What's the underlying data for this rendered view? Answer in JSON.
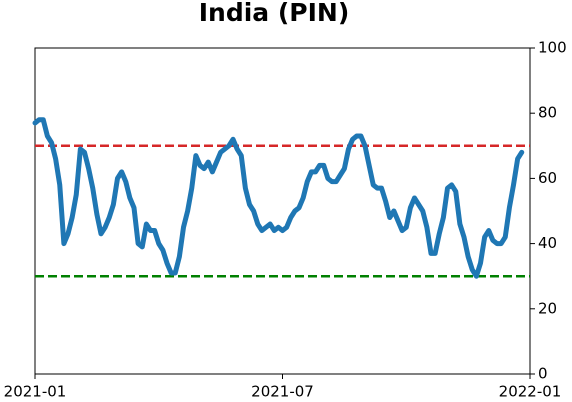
{
  "chart_data": {
    "type": "line",
    "title": "India (PIN)",
    "x": [
      0,
      0.1,
      0.2,
      0.3,
      0.4,
      0.5,
      0.6,
      0.7,
      0.8,
      0.9,
      1,
      1.1,
      1.2,
      1.3,
      1.4,
      1.5,
      1.6,
      1.7,
      1.8,
      1.9,
      2,
      2.1,
      2.2,
      2.3,
      2.4,
      2.5,
      2.6,
      2.7,
      2.8,
      2.9,
      3,
      3.1,
      3.2,
      3.3,
      3.4,
      3.5,
      3.6,
      3.7,
      3.8,
      3.9,
      4,
      4.1,
      4.2,
      4.3,
      4.4,
      4.5,
      4.6,
      4.7,
      4.8,
      4.9,
      5,
      5.1,
      5.2,
      5.3,
      5.4,
      5.5,
      5.6,
      5.7,
      5.8,
      5.9,
      6,
      6.1,
      6.2,
      6.3,
      6.4,
      6.5,
      6.6,
      6.7,
      6.8,
      6.9,
      7,
      7.1,
      7.2,
      7.3,
      7.4,
      7.5,
      7.6,
      7.7,
      7.8,
      7.9,
      8,
      8.1,
      8.2,
      8.3,
      8.4,
      8.5,
      8.6,
      8.7,
      8.8,
      8.9,
      9,
      9.1,
      9.2,
      9.3,
      9.4,
      9.5,
      9.6,
      9.7,
      9.8,
      9.9,
      10,
      10.1,
      10.2,
      10.3,
      10.4,
      10.5,
      10.6,
      10.7,
      10.8,
      10.9,
      11,
      11.1,
      11.2,
      11.3,
      11.4,
      11.5,
      11.6,
      11.7,
      11.8
    ],
    "series": [
      {
        "name": "PIN",
        "color": "#1f77b4",
        "values": [
          77,
          78,
          78,
          73,
          71,
          66,
          58,
          40,
          43,
          48,
          55,
          69,
          68,
          63,
          57,
          49,
          43,
          45,
          48,
          52,
          60,
          62,
          59,
          54,
          51,
          40,
          39,
          46,
          44,
          44,
          40,
          38,
          34,
          31,
          31,
          36,
          45,
          50,
          57,
          67,
          64,
          63,
          65,
          62,
          65,
          68,
          69,
          70,
          72,
          69,
          67,
          57,
          52,
          50,
          46,
          44,
          45,
          46,
          44,
          45,
          44,
          45,
          48,
          50,
          51,
          54,
          59,
          62,
          62,
          64,
          64,
          60,
          59,
          59,
          61,
          63,
          69,
          72,
          73,
          73,
          70,
          64,
          58,
          57,
          57,
          53,
          48,
          50,
          47,
          44,
          45,
          51,
          54,
          52,
          50,
          45,
          37,
          37,
          43,
          48,
          57,
          58,
          56,
          46,
          42,
          36,
          32,
          30,
          34,
          42,
          44,
          41,
          40,
          40,
          42,
          51,
          58,
          66,
          68
        ]
      }
    ],
    "xlim": [
      0,
      12
    ],
    "xticks": [
      {
        "value": 0,
        "label": "2021-01"
      },
      {
        "value": 6,
        "label": "2021-07"
      },
      {
        "value": 12,
        "label": "2022-01"
      }
    ],
    "ylim": [
      0,
      100
    ],
    "yticks": [
      0,
      20,
      40,
      60,
      80,
      100
    ],
    "hlines": [
      {
        "value": 70,
        "color": "#d62728"
      },
      {
        "value": 30,
        "color": "#008000"
      }
    ]
  }
}
